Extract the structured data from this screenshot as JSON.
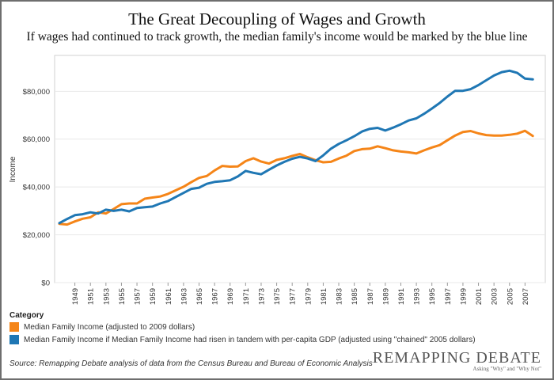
{
  "chart_data": {
    "type": "line",
    "title": "The Great Decoupling of Wages and Growth",
    "subtitle": "If wages had continued to track growth, the median family's income would be marked by the blue line",
    "ylabel": "Income",
    "xlabel": "",
    "ylim": [
      0,
      95000
    ],
    "xlim": [
      1947,
      2009
    ],
    "y_ticks": [
      0,
      20000,
      40000,
      60000,
      80000
    ],
    "y_tick_labels": [
      "$0",
      "$20,000",
      "$40,000",
      "$60,000",
      "$80,000"
    ],
    "x_tick_labels": [
      "1949",
      "1951",
      "1953",
      "1955",
      "1957",
      "1959",
      "1961",
      "1963",
      "1965",
      "1967",
      "1969",
      "1971",
      "1973",
      "1975",
      "1977",
      "1979",
      "1981",
      "1983",
      "1985",
      "1987",
      "1989",
      "1991",
      "1993",
      "1995",
      "1997",
      "1999",
      "2001",
      "2003",
      "2005",
      "2007"
    ],
    "grid": true,
    "legend_title": "Category",
    "x": [
      1947,
      1948,
      1949,
      1950,
      1951,
      1952,
      1953,
      1954,
      1955,
      1956,
      1957,
      1958,
      1959,
      1960,
      1961,
      1962,
      1963,
      1964,
      1965,
      1966,
      1967,
      1968,
      1969,
      1970,
      1971,
      1972,
      1973,
      1974,
      1975,
      1976,
      1977,
      1978,
      1979,
      1980,
      1981,
      1982,
      1983,
      1984,
      1985,
      1986,
      1987,
      1988,
      1989,
      1990,
      1991,
      1992,
      1993,
      1994,
      1995,
      1996,
      1997,
      1998,
      1999,
      2000,
      2001,
      2002,
      2003,
      2004,
      2005,
      2006,
      2007,
      2008
    ],
    "series": [
      {
        "name": "Median Family Income (adjusted to 2009 dollars)",
        "color": "#f58518",
        "values": [
          24600,
          24300,
          25600,
          26700,
          27300,
          29400,
          28900,
          30800,
          32800,
          33100,
          33100,
          35100,
          35600,
          36000,
          37100,
          38600,
          40100,
          42000,
          43800,
          44600,
          46900,
          48800,
          48500,
          48600,
          50800,
          52000,
          50600,
          49800,
          51300,
          52000,
          53000,
          53800,
          52400,
          51200,
          50300,
          50500,
          51900,
          53100,
          55000,
          55800,
          56000,
          57000,
          56200,
          55300,
          54800,
          54500,
          54000,
          55300,
          56500,
          57500,
          59500,
          61500,
          63000,
          63400,
          62400,
          61700,
          61500,
          61500,
          61800,
          62300,
          63500,
          61300
        ]
      },
      {
        "name": "Median Family Income if Median Family Income had risen in tandem with per-capita GDP (adjusted using \"chained\" 2005 dollars)",
        "color": "#1f77b4",
        "values": [
          24900,
          26600,
          28200,
          28600,
          29400,
          28900,
          30500,
          30000,
          30500,
          29800,
          31200,
          31500,
          31800,
          33100,
          34100,
          35800,
          37500,
          39200,
          39700,
          41300,
          42100,
          42400,
          42800,
          44400,
          46700,
          45900,
          45300,
          47200,
          49000,
          50500,
          51800,
          52600,
          51900,
          50800,
          53200,
          56000,
          58000,
          59500,
          61200,
          63200,
          64300,
          64700,
          63600,
          64800,
          66200,
          67800,
          68700,
          70600,
          72800,
          75100,
          77800,
          80200,
          80200,
          80900,
          82600,
          84600,
          86600,
          88000,
          88600,
          87700,
          85300,
          85000
        ]
      }
    ]
  },
  "source_text": "Source: Remapping Debate analysis of data from the Census Bureau and Bureau of Economic Analysis",
  "branding": {
    "name": "REMAPPING DEBATE",
    "tagline": "Asking \"Why\" and \"Why Not\""
  },
  "colors": {
    "orange": "#f58518",
    "blue": "#1f77b4",
    "plot_background": "#ffffff",
    "grid": "#e8e8e8"
  }
}
